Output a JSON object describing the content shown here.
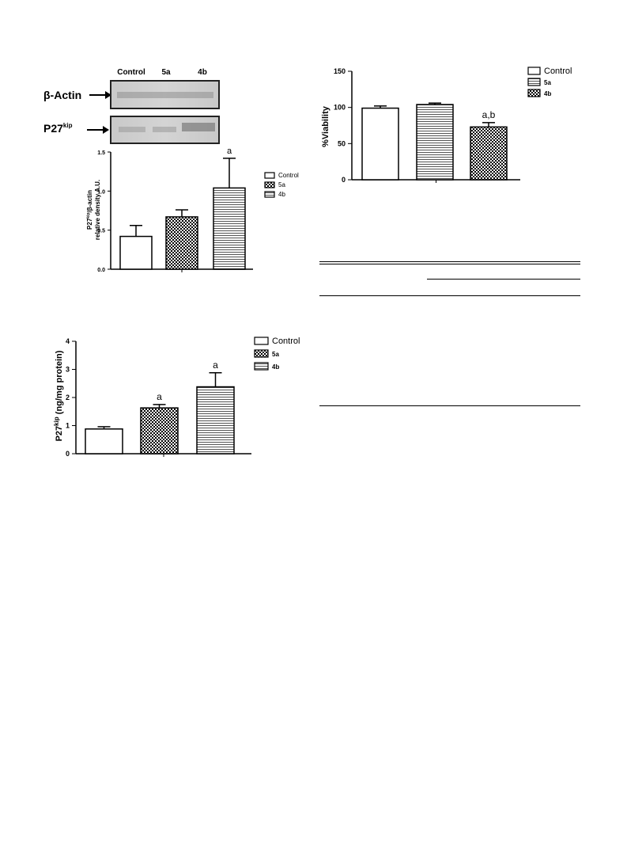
{
  "blot": {
    "lanes": [
      "Control",
      "5a",
      "4b"
    ],
    "rows": [
      {
        "label_main": "β-Actin",
        "label_sup": ""
      },
      {
        "label_main": "P27",
        "label_sup": "kip"
      }
    ]
  },
  "colors": {
    "bar_stroke": "#000000",
    "background": "#ffffff"
  },
  "chart_data": [
    {
      "type": "bar",
      "ylabel_main": "P27",
      "ylabel_sup": "kip",
      "ylabel_rest": "/β-actin",
      "ylabel_line2": "relative density A.U.",
      "categories": [
        "Control",
        "5a",
        "4b"
      ],
      "values": [
        0.42,
        0.67,
        1.04
      ],
      "errors": [
        0.14,
        0.09,
        0.38
      ],
      "annotations": [
        "",
        "",
        "a"
      ],
      "patterns": [
        "white",
        "checker",
        "hstripe"
      ],
      "ylim": [
        0,
        1.5
      ],
      "yticks": [
        "0.0",
        "0.5",
        "1.0",
        "1.5"
      ],
      "legend": [
        "Control",
        "5a",
        "4b"
      ],
      "legend_position": "right"
    },
    {
      "type": "bar",
      "ylabel_main": "%Viability",
      "categories": [
        "Control",
        "5a",
        "4b"
      ],
      "values": [
        99,
        104,
        73
      ],
      "errors": [
        3,
        2,
        6
      ],
      "annotations": [
        "",
        "",
        "a,b"
      ],
      "patterns": [
        "white",
        "hstripe",
        "checker"
      ],
      "ylim": [
        0,
        150
      ],
      "yticks": [
        "0",
        "50",
        "100",
        "150"
      ],
      "legend": [
        "Control",
        "5a",
        "4b"
      ],
      "legend_position": "top-right"
    },
    {
      "type": "bar",
      "ylabel_main": "P27",
      "ylabel_sup": "kip",
      "ylabel_rest": " (ng/mg protein)",
      "categories": [
        "Control",
        "5a",
        "4b"
      ],
      "values": [
        0.88,
        1.63,
        2.38
      ],
      "errors": [
        0.08,
        0.12,
        0.5
      ],
      "annotations": [
        "",
        "a",
        "a"
      ],
      "patterns": [
        "white",
        "checker",
        "hstripe"
      ],
      "ylim": [
        0,
        4
      ],
      "yticks": [
        "0",
        "1",
        "2",
        "3",
        "4"
      ],
      "legend": [
        "Control",
        "5a",
        "4b"
      ],
      "legend_position": "top-right"
    }
  ]
}
